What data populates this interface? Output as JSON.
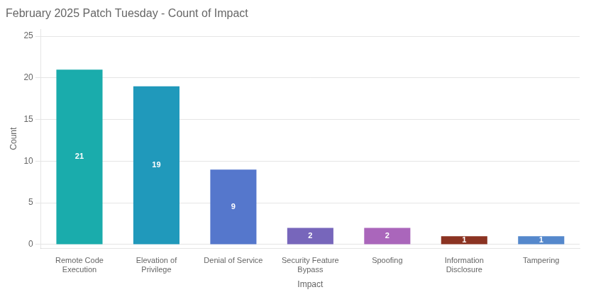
{
  "chart_data": {
    "type": "bar",
    "title": "February 2025 Patch Tuesday - Count of Impact",
    "xlabel": "Impact",
    "ylabel": "Count",
    "categories": [
      "Remote Code\nExecution",
      "Elevation of\nPrivilege",
      "Denial of Service",
      "Security Feature\nBypass",
      "Spoofing",
      "Information\nDisclosure",
      "Tampering"
    ],
    "values": [
      21,
      19,
      9,
      2,
      2,
      1,
      1
    ],
    "colors": [
      "#1AACAC",
      "#2099BB",
      "#5577CC",
      "#7766BB",
      "#AA66BB",
      "#8B3322",
      "#5588CC"
    ],
    "ylim": [
      -0.45,
      25.85
    ],
    "yticks": [
      0,
      5,
      10,
      15,
      20,
      25
    ],
    "grid": true,
    "data_labels": true
  }
}
